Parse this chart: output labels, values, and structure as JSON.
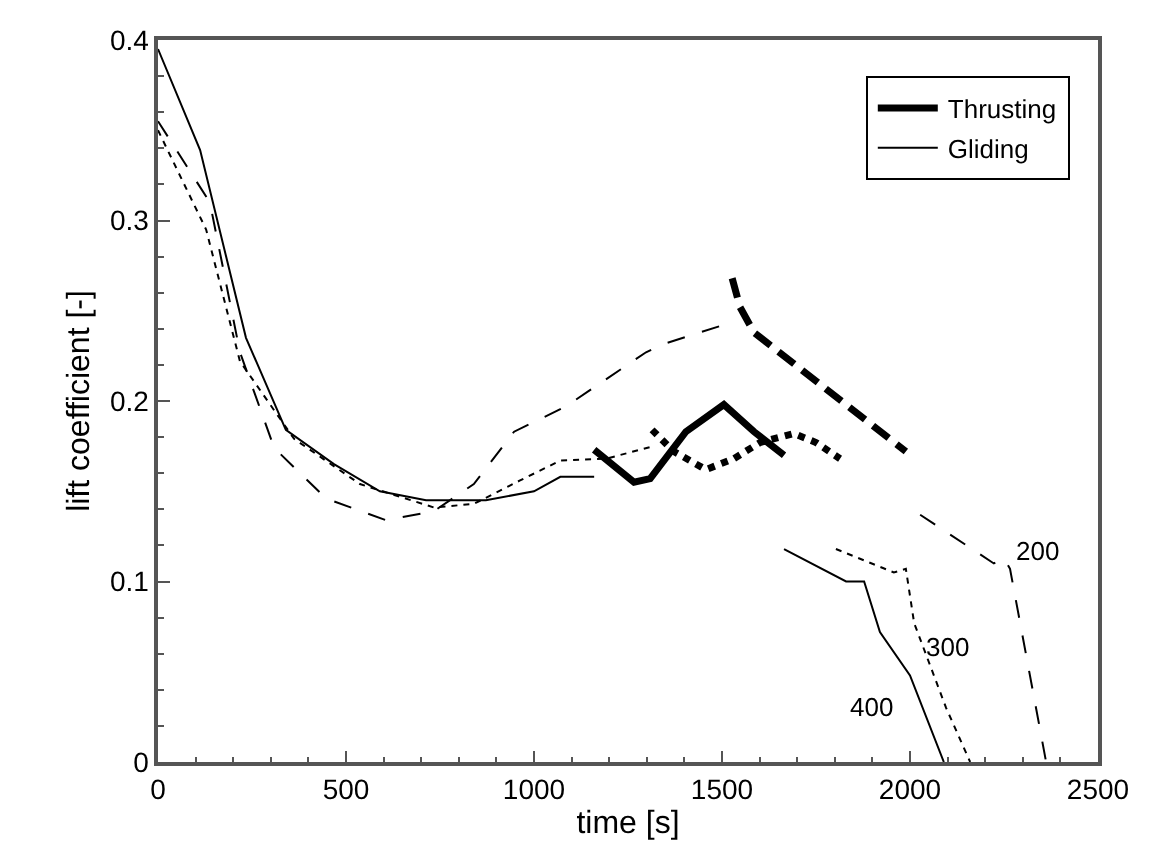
{
  "chart_data": {
    "type": "line",
    "xlabel": "time [s]",
    "ylabel": "lift coefficient [-]",
    "xlim": [
      0,
      2500
    ],
    "ylim": [
      0,
      0.4
    ],
    "xticks": [
      0,
      500,
      1000,
      1500,
      2000,
      2500
    ],
    "yticks": [
      0,
      0.1,
      0.2,
      0.3,
      0.4
    ],
    "legend": "top right",
    "marker": "none",
    "series": [
      {
        "name": "Thrusting",
        "color": "#000000",
        "line_style": "solid",
        "x": [
          1160,
          1266,
          1309,
          1404,
          1505,
          1585,
          1665
        ],
        "values": [
          0.173,
          0.155,
          0.157,
          0.183,
          0.198,
          0.183,
          0.17
        ]
      },
      {
        "color": "#000000",
        "line_style": "dotted",
        "x": [
          1314,
          1372,
          1457,
          1531,
          1601,
          1691,
          1750,
          1814
        ],
        "values": [
          0.184,
          0.172,
          0.162,
          0.168,
          0.177,
          0.182,
          0.177,
          0.168
        ]
      },
      {
        "color": "#000000",
        "line_style": "dashed",
        "x": [
          1527,
          1548,
          1585,
          1989
        ],
        "values": [
          0.268,
          0.252,
          0.238,
          0.172
        ]
      },
      {
        "name": "Gliding",
        "color": "#000000",
        "line_style": "solid",
        "x": [
          0,
          112,
          234,
          340,
          468,
          590,
          713,
          872,
          1000,
          1070,
          1160,
          1400,
          1665,
          1830,
          1878,
          1920,
          2000,
          2090
        ],
        "values": [
          0.395,
          0.339,
          0.235,
          0.184,
          0.165,
          0.15,
          0.145,
          0.145,
          0.15,
          0.158,
          0.158,
          null,
          0.118,
          0.1,
          0.1,
          0.072,
          0.048,
          0.0
        ]
      },
      {
        "color": "#000000",
        "line_style": "dotted",
        "x": [
          0,
          128,
          218,
          362,
          537,
          734,
          840,
          963,
          1070,
          1191,
          1319,
          1600,
          1803,
          1957,
          1989,
          2011,
          2096,
          2160
        ],
        "values": [
          0.35,
          0.295,
          0.222,
          0.179,
          0.154,
          0.141,
          0.143,
          0.156,
          0.167,
          0.168,
          0.175,
          null,
          0.118,
          0.105,
          0.107,
          0.077,
          0.03,
          0.0
        ]
      },
      {
        "color": "#000000",
        "line_style": "dashed",
        "x": [
          0,
          138,
          218,
          309,
          447,
          606,
          734,
          840,
          947,
          1085,
          1298,
          1351,
          1532,
          1800,
          2027,
          2223,
          2250,
          2266,
          2362
        ],
        "values": [
          0.355,
          0.31,
          0.227,
          0.174,
          0.146,
          0.134,
          0.139,
          0.154,
          0.183,
          0.197,
          0.227,
          0.232,
          0.244,
          null,
          0.137,
          0.11,
          0.113,
          0.107,
          0.0
        ]
      }
    ],
    "annotations": [
      {
        "text": "200",
        "x": 2250,
        "y": 0.113
      },
      {
        "text": "300",
        "x": 2011,
        "y": 0.077
      },
      {
        "text": "400",
        "x": 2000,
        "y": 0.048
      }
    ]
  }
}
